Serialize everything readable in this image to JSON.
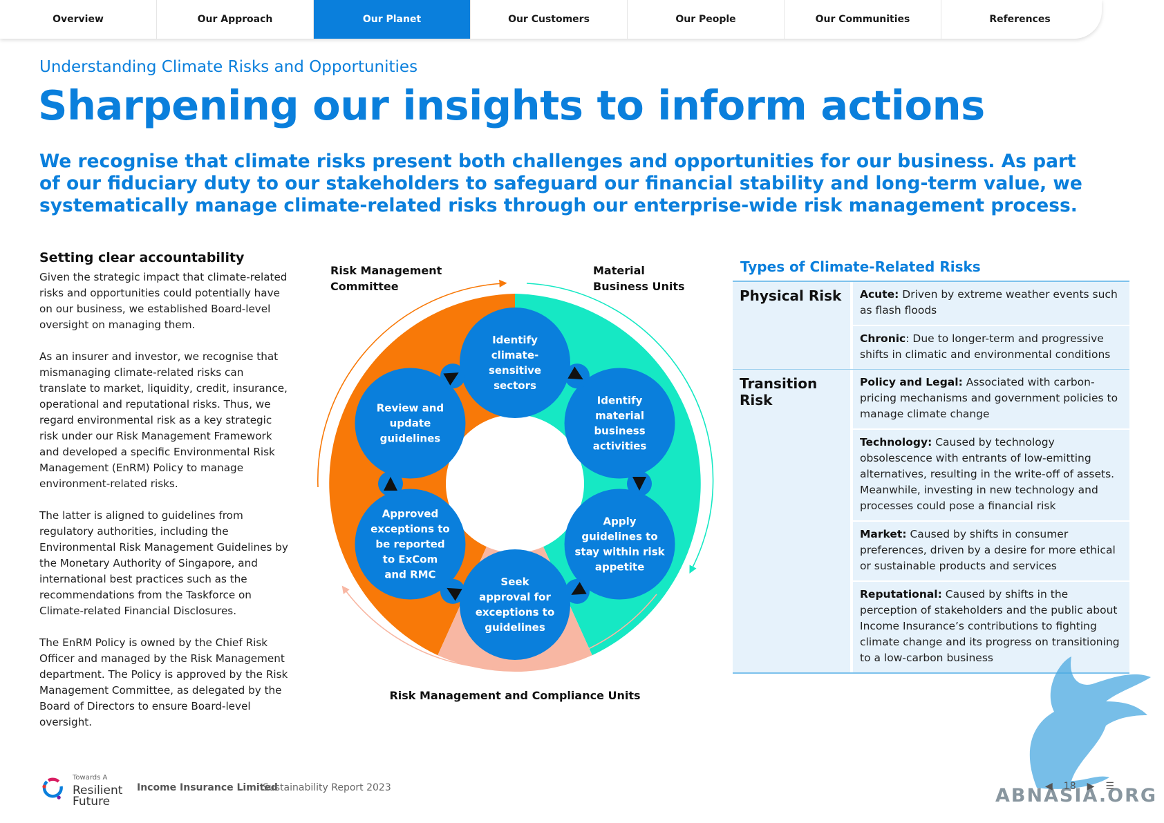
{
  "nav": {
    "tabs": [
      {
        "label": "Overview"
      },
      {
        "label": "Our Approach"
      },
      {
        "label": "Our Planet",
        "active": true
      },
      {
        "label": "Our Customers"
      },
      {
        "label": "Our People"
      },
      {
        "label": "Our Communities"
      },
      {
        "label": "References"
      }
    ]
  },
  "header": {
    "kicker": "Understanding Climate Risks and Opportunities",
    "title": "Sharpening our insights to inform actions",
    "lead": "We recognise that climate risks present both challenges and opportunities for our business. As part of our fiduciary duty to our stakeholders to safeguard our financial stability and long-term value, we systematically manage climate-related risks through our enterprise-wide risk management process."
  },
  "left": {
    "heading": "Setting clear accountability",
    "paragraphs": [
      "Given the strategic impact that climate-related risks and opportunities could potentially have on our business, we established Board-level oversight on managing them.",
      "As an insurer and investor, we recognise that mismanaging climate-related risks can translate to market, liquidity, credit, insurance, operational and reputational risks. Thus, we regard environmental risk as a key strategic risk under our Risk Management Framework and developed a specific Environmental Risk Management (EnRM) Policy to manage environment-related risks.",
      "The latter is aligned to guidelines from regulatory authorities, including the Environmental Risk Management Guidelines by the Monetary Authority of Singapore, and international best practices such as the recommendations from the Taskforce on Climate-related Financial Disclosures.",
      "The EnRM Policy is owned by the Chief Risk Officer and managed by the Risk Management department. The Policy is approved by the Risk Management Committee, as delegated by the Board of Directors to ensure Board-level oversight."
    ]
  },
  "diagram": {
    "label_top_left": "Risk Management Committee",
    "label_top_right": "Material Business Units",
    "label_bottom": "Risk Management and Compliance Units",
    "steps": [
      "Identify climate-sensitive sectors",
      "Identify material business activities",
      "Apply guidelines to stay within risk appetite",
      "Seek approval for exceptions to guidelines",
      "Approved exceptions to be reported to ExCom and RMC",
      "Review and update guidelines"
    ],
    "colors": {
      "orange": "#f87908",
      "teal": "#16e8c4",
      "peach": "#f8b7a3",
      "circle": "#0a7fdc"
    }
  },
  "risks": {
    "title": "Types of Climate-Related Risks",
    "groups": [
      {
        "type": "Physical Risk",
        "items": [
          {
            "term": "Acute:",
            "text": " Driven by extreme weather events such as flash floods"
          },
          {
            "term": "Chronic",
            "text": ": Due to longer-term and progressive shifts in climatic and environmental conditions"
          }
        ]
      },
      {
        "type": "Transition Risk",
        "items": [
          {
            "term": "Policy and Legal:",
            "text": " Associated with carbon-pricing mechanisms and government policies to manage climate change"
          },
          {
            "term": "Technology:",
            "text": " Caused by technology obsolescence with entrants of low-emitting alternatives, resulting in the write-off of assets. Meanwhile, investing in new technology and processes could pose a financial risk"
          },
          {
            "term": "Market:",
            "text": " Caused by shifts in consumer preferences, driven by a desire for more ethical or sustainable products and services"
          },
          {
            "term": "Reputational:",
            "text": " Caused by shifts in the perception of stakeholders and the public about Income Insurance’s contributions to fighting climate change and its progress on transitioning to a low-carbon business"
          }
        ]
      }
    ]
  },
  "footer": {
    "brand_small": "Towards A",
    "brand_line1": "Resilient",
    "brand_line2": "Future",
    "company": "Income Insurance Limited",
    "report": "Sustainability Report 2023",
    "page": "18"
  },
  "watermark": {
    "text": "ABNASIA.ORG"
  }
}
